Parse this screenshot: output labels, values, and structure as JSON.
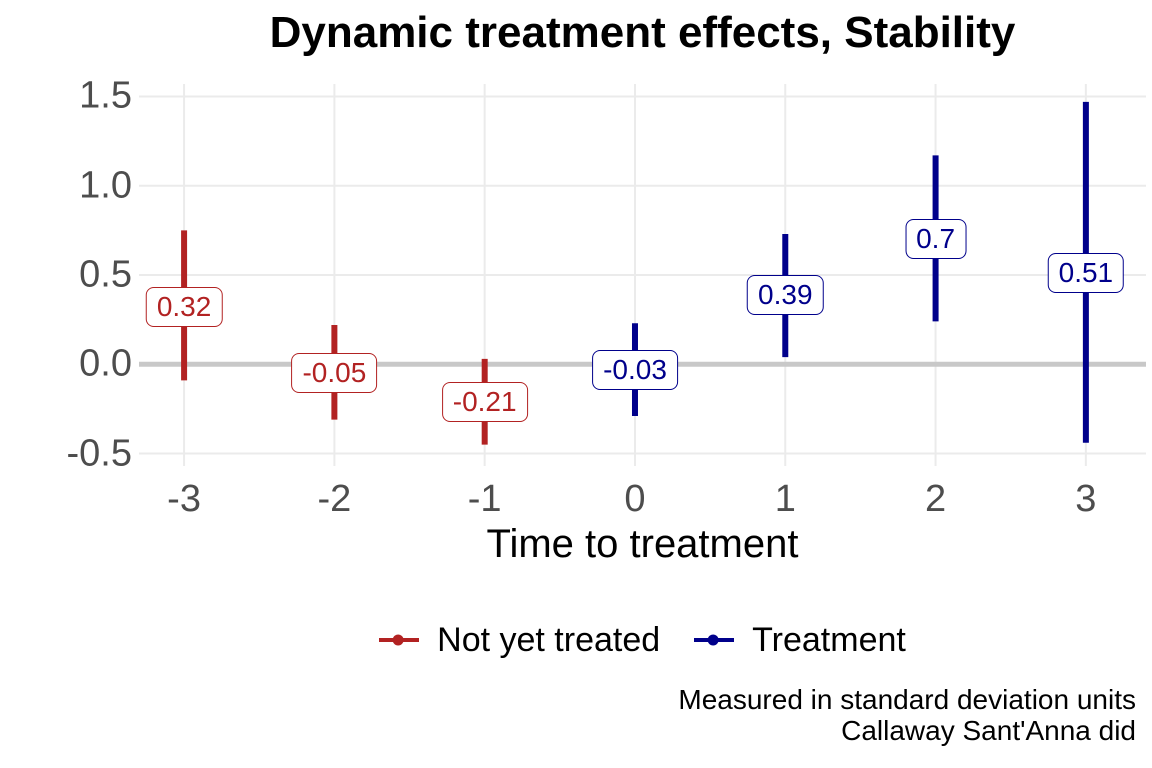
{
  "chart_data": {
    "type": "pointrange",
    "title": "Dynamic treatment effects, Stability",
    "xlabel": "Time to treatment",
    "ylabel": "",
    "caption_lines": [
      "Measured in standard deviation units",
      "Callaway Sant'Anna did"
    ],
    "legend_position": "bottom",
    "grid": true,
    "zero_line_y": 0,
    "x_ticks": [
      -3,
      -2,
      -1,
      0,
      1,
      2,
      3
    ],
    "x_tick_labels": [
      "-3",
      "-2",
      "-1",
      "0",
      "1",
      "2",
      "3"
    ],
    "y_ticks": [
      -0.5,
      0.0,
      0.5,
      1.0,
      1.5
    ],
    "y_tick_labels": [
      "-0.5",
      "0.0",
      "0.5",
      "1.0",
      "1.5"
    ],
    "xlim": [
      -3.3,
      3.4
    ],
    "ylim": [
      -0.57,
      1.57
    ],
    "series": [
      {
        "name": "Not yet treated",
        "color": "#B22222",
        "points": [
          {
            "x": -3,
            "y": 0.32,
            "low": -0.09,
            "high": 0.75,
            "label": "0.32"
          },
          {
            "x": -2,
            "y": -0.05,
            "low": -0.31,
            "high": 0.22,
            "label": "-0.05"
          },
          {
            "x": -1,
            "y": -0.21,
            "low": -0.45,
            "high": 0.03,
            "label": "-0.21"
          }
        ]
      },
      {
        "name": "Treatment",
        "color": "#00008B",
        "points": [
          {
            "x": 0,
            "y": -0.03,
            "low": -0.29,
            "high": 0.23,
            "label": "-0.03"
          },
          {
            "x": 1,
            "y": 0.39,
            "low": 0.04,
            "high": 0.73,
            "label": "0.39"
          },
          {
            "x": 2,
            "y": 0.7,
            "low": 0.24,
            "high": 1.17,
            "label": "0.7"
          },
          {
            "x": 3,
            "y": 0.51,
            "low": -0.44,
            "high": 1.47,
            "label": "0.51"
          }
        ]
      }
    ],
    "colors": {
      "grid": "#EBEBEB",
      "zero_line": "#C8C8C8",
      "axis_text": "#4D4D4D",
      "text": "#000000",
      "background": "#FFFFFF"
    }
  }
}
